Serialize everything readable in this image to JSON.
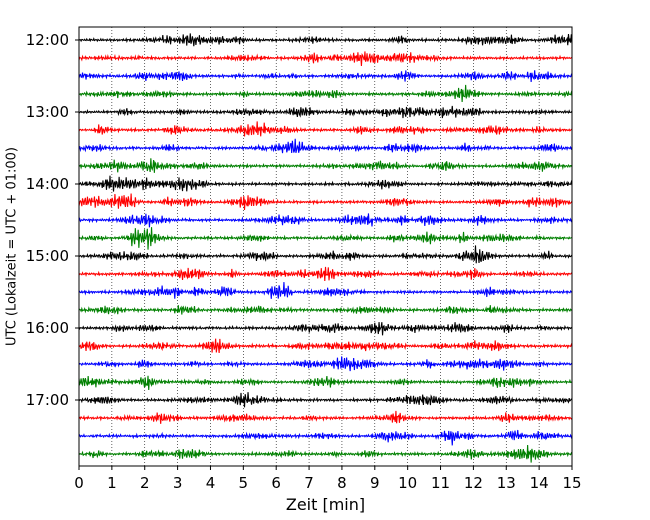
{
  "chart_data": {
    "type": "line",
    "title": "",
    "xlabel": "Zeit  [min]",
    "ylabel": "UTC (Lokalzeit = UTC + 01:00)",
    "xlim": [
      0,
      15
    ],
    "x_ticks": [
      0,
      1,
      2,
      3,
      4,
      5,
      6,
      7,
      8,
      9,
      10,
      11,
      12,
      13,
      14,
      15
    ],
    "x_tick_labels": [
      "0",
      "1",
      "2",
      "3",
      "4",
      "5",
      "6",
      "7",
      "8",
      "9",
      "10",
      "11",
      "12",
      "13",
      "14",
      "15"
    ],
    "y_tick_labels": [
      "12:00",
      "13:00",
      "14:00",
      "15:00",
      "16:00",
      "17:00"
    ],
    "grid": "vertical dotted at each minute",
    "trace_colors": [
      "#000000",
      "#ff0000",
      "#0000ff",
      "#008000"
    ],
    "traces": [
      {
        "start": "12:00",
        "color": "#000000"
      },
      {
        "start": "12:15",
        "color": "#ff0000"
      },
      {
        "start": "12:30",
        "color": "#0000ff"
      },
      {
        "start": "12:45",
        "color": "#008000"
      },
      {
        "start": "13:00",
        "color": "#000000"
      },
      {
        "start": "13:15",
        "color": "#ff0000"
      },
      {
        "start": "13:30",
        "color": "#0000ff"
      },
      {
        "start": "13:45",
        "color": "#008000"
      },
      {
        "start": "14:00",
        "color": "#000000"
      },
      {
        "start": "14:15",
        "color": "#ff0000"
      },
      {
        "start": "14:30",
        "color": "#0000ff"
      },
      {
        "start": "14:45",
        "color": "#008000"
      },
      {
        "start": "15:00",
        "color": "#000000"
      },
      {
        "start": "15:15",
        "color": "#ff0000"
      },
      {
        "start": "15:30",
        "color": "#0000ff"
      },
      {
        "start": "15:45",
        "color": "#008000"
      },
      {
        "start": "16:00",
        "color": "#000000"
      },
      {
        "start": "16:15",
        "color": "#ff0000"
      },
      {
        "start": "16:30",
        "color": "#0000ff"
      },
      {
        "start": "16:45",
        "color": "#008000"
      },
      {
        "start": "17:00",
        "color": "#000000"
      },
      {
        "start": "17:15",
        "color": "#ff0000"
      },
      {
        "start": "17:30",
        "color": "#0000ff"
      },
      {
        "start": "17:45",
        "color": "#008000"
      }
    ]
  }
}
